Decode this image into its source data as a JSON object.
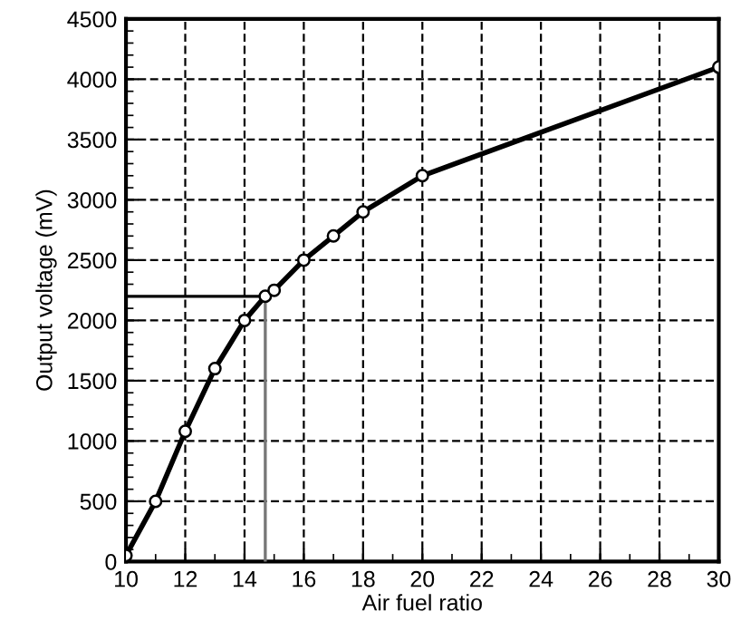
{
  "chart_data": {
    "type": "line",
    "xlabel": "Air fuel ratio",
    "ylabel": "Output voltage (mV)",
    "xlim": [
      10,
      30
    ],
    "xticks": [
      10,
      12,
      14,
      16,
      18,
      20,
      22,
      24,
      26,
      28,
      30
    ],
    "ylim": [
      0,
      4500
    ],
    "yticks": [
      0,
      500,
      1000,
      1500,
      2000,
      2500,
      3000,
      3500,
      4000,
      4500
    ],
    "grid": true,
    "marker": "circle",
    "line_style": "solid",
    "series": [
      {
        "color": "#000000",
        "x": [
          10,
          11,
          12,
          13,
          14,
          14.7,
          15,
          16,
          17,
          18,
          20,
          30
        ],
        "values": [
          50,
          500,
          1080,
          1600,
          2000,
          2200,
          2250,
          2500,
          2700,
          2900,
          3200,
          4100
        ]
      },
      {
        "color": "#000000",
        "marker": "none",
        "x": [
          10,
          14.7
        ],
        "values": [
          2200,
          2200
        ]
      },
      {
        "color": "#777777",
        "marker": "none",
        "x": [
          14.7,
          14.7
        ],
        "values": [
          2200,
          0
        ]
      }
    ]
  }
}
